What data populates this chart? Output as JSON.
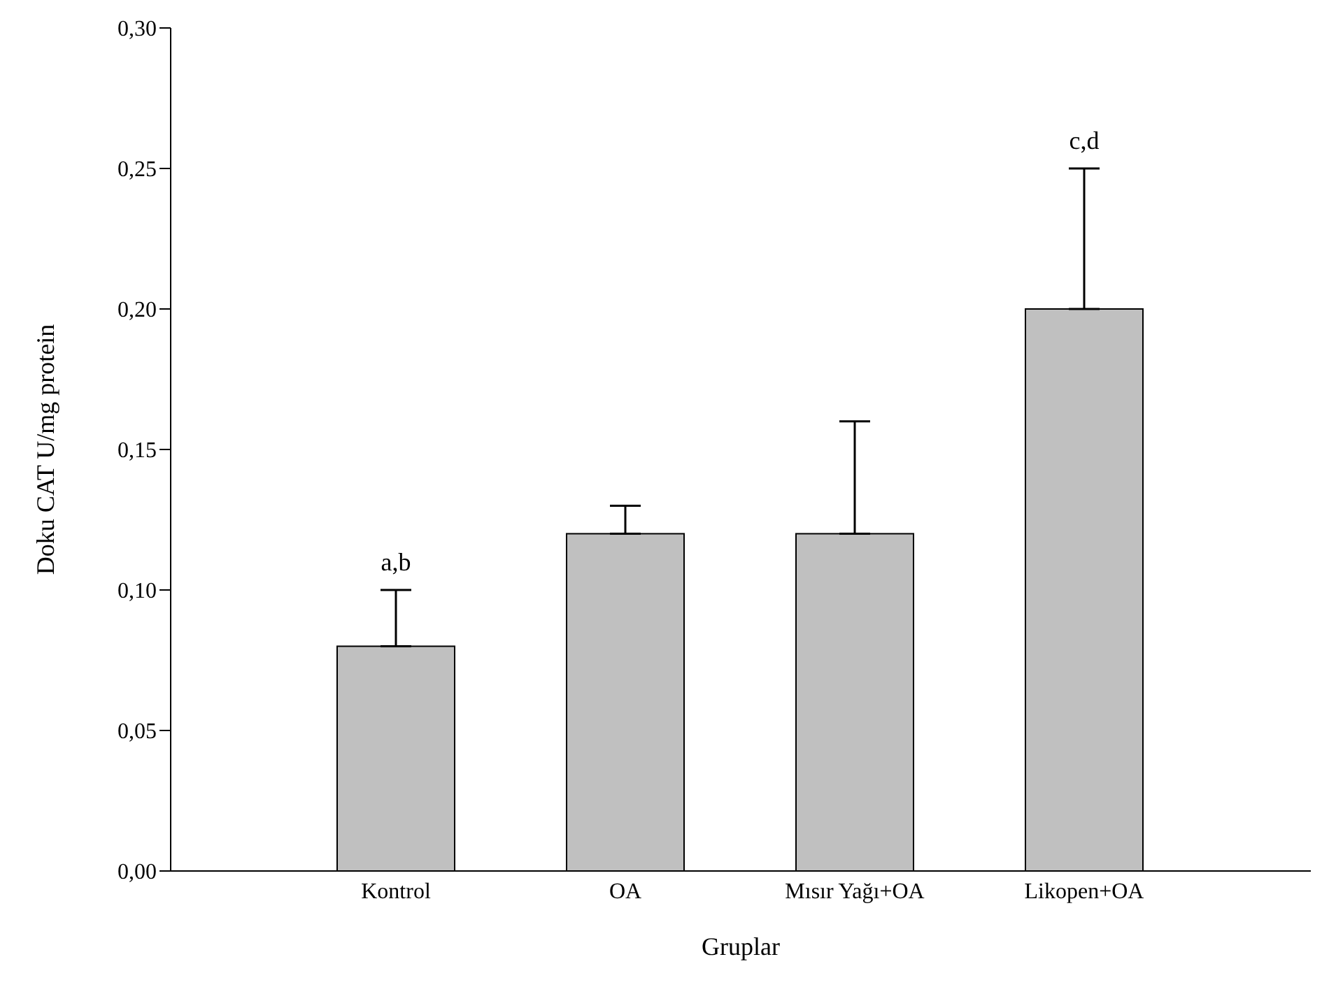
{
  "chart_data": {
    "type": "bar",
    "categories": [
      "Kontrol",
      "OA",
      "Mısır Yağı+OA",
      "Likopen+OA"
    ],
    "values": [
      0.08,
      0.12,
      0.12,
      0.2
    ],
    "errors": [
      [
        0.08,
        0.1
      ],
      [
        0.12,
        0.13
      ],
      [
        0.12,
        0.16
      ],
      [
        0.2,
        0.25
      ]
    ],
    "color": "#c0c0c0",
    "xlabel": "Gruplar",
    "ylabel": "Doku CAT U/mg protein",
    "ylim": [
      0,
      0.3
    ],
    "yticks": [
      {
        "value": 0,
        "label": "0,00"
      },
      {
        "value": 0.05,
        "label": "0,05"
      },
      {
        "value": 0.1,
        "label": "0,10"
      },
      {
        "value": 0.15,
        "label": "0,15"
      },
      {
        "value": 0.2,
        "label": "0,20"
      },
      {
        "value": 0.25,
        "label": "0,25"
      },
      {
        "value": 0.3,
        "label": "0,30"
      }
    ],
    "annotations": [
      {
        "text": "a,b",
        "x": "Kontrol",
        "y": 0.1
      },
      {
        "text": "c,d",
        "x": "Likopen+OA",
        "y": 0.25
      }
    ],
    "grid": false,
    "legend": false
  }
}
